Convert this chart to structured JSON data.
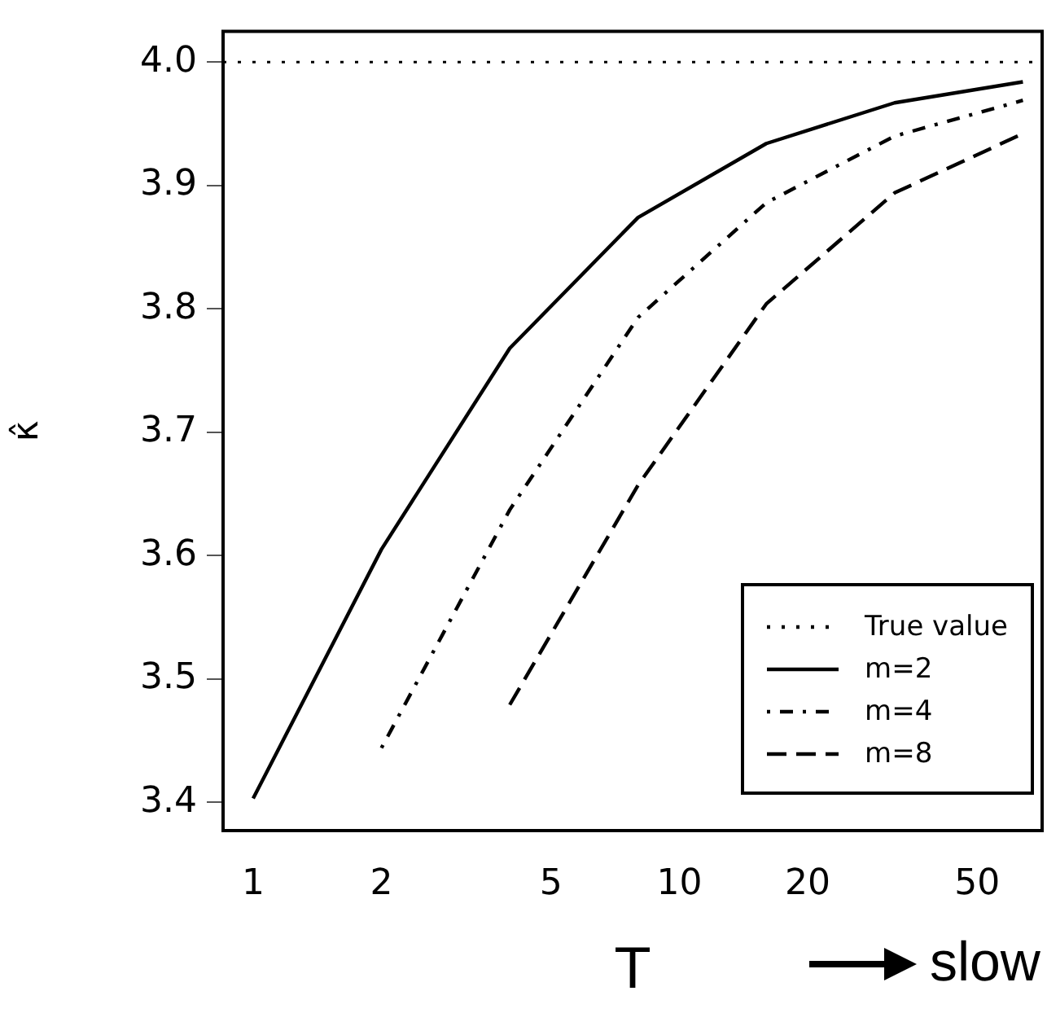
{
  "chart_data": {
    "type": "line",
    "xlabel": "T",
    "ylabel": "κ̂",
    "log": "x",
    "x": [
      1,
      2,
      4,
      8,
      16,
      32,
      64
    ],
    "xlim": [
      0.85,
      71
    ],
    "xticks": [
      1,
      2,
      5,
      10,
      20,
      50
    ],
    "ylim": [
      3.377,
      4.025
    ],
    "yticks": [
      3.4,
      3.5,
      3.6,
      3.7,
      3.8,
      3.9,
      {
        "value": 4.0,
        "label": "4.0"
      }
    ],
    "series": [
      {
        "name": "m=2",
        "color": "#000000",
        "line_style": "solid",
        "values": [
          3.403,
          3.605,
          3.768,
          3.874,
          3.934,
          3.967,
          3.984
        ]
      },
      {
        "name": "m=4",
        "color": "#000000",
        "line_style": "dashdot",
        "values": [
          null,
          3.444,
          3.637,
          3.793,
          3.886,
          3.94,
          3.969
        ]
      },
      {
        "name": "m=8",
        "color": "#000000",
        "line_style": "dashed",
        "values": [
          null,
          null,
          3.479,
          3.657,
          3.804,
          3.894,
          3.942
        ]
      }
    ],
    "ref_lines": [
      {
        "axis": "y",
        "value": 4.0,
        "label": "True value",
        "line_style": "dotted",
        "color": "#000000"
      }
    ],
    "legend": "bottom right",
    "grid": false,
    "marker": "none",
    "annotations": [
      "slow"
    ]
  }
}
